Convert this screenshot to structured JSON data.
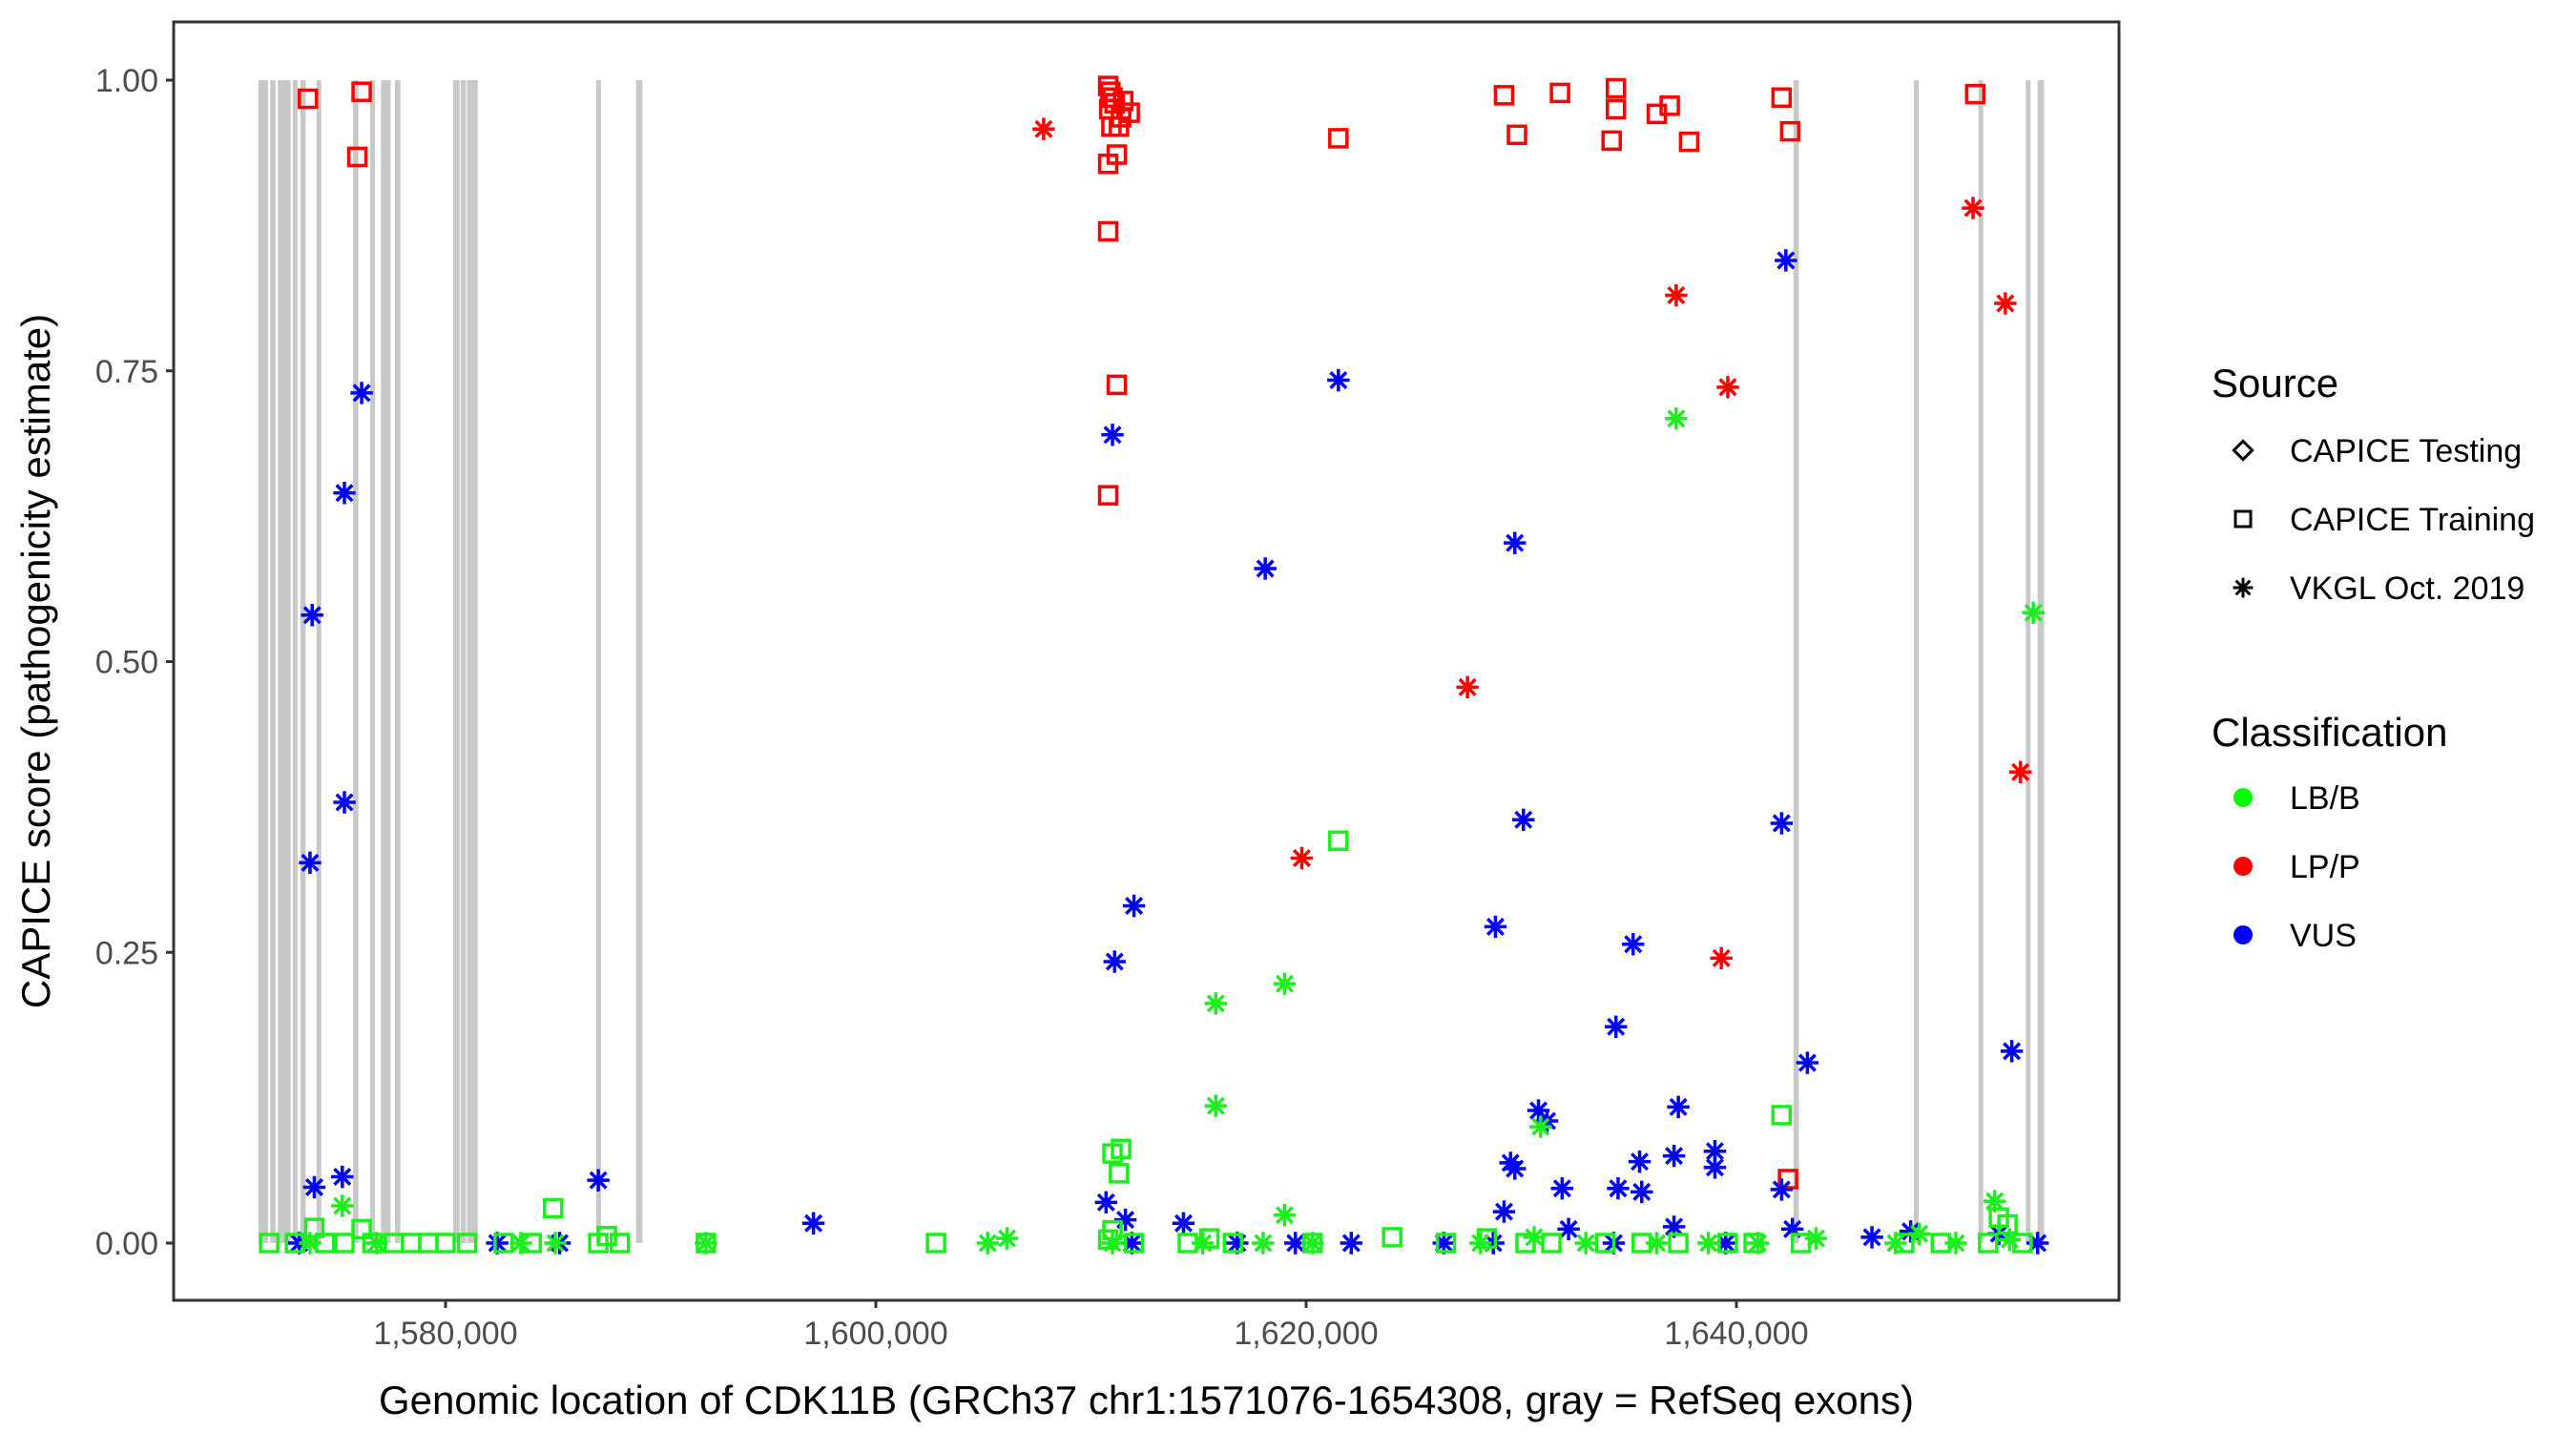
{
  "chart_data": {
    "type": "scatter",
    "title": "",
    "xlabel": "Genomic location of CDK11B (GRCh37 chr1:1571076-1654308, gray = RefSeq exons)",
    "ylabel": "CAPICE score (pathogenicity estimate)",
    "xlim": [
      1567300,
      1657900
    ],
    "ylim": [
      -0.05,
      1.05
    ],
    "x_ticks": [
      1580000,
      1600000,
      1620000,
      1640000
    ],
    "x_tick_labels": [
      "1,580,000",
      "1,600,000",
      "1,620,000",
      "1,640,000"
    ],
    "y_ticks": [
      0,
      0.25,
      0.5,
      0.75,
      1.0
    ],
    "y_tick_labels": [
      "0.00",
      "0.25",
      "0.50",
      "0.75",
      "1.00"
    ],
    "grid": false,
    "exons": [
      [
        1571300,
        1571750
      ],
      [
        1571850,
        1572100
      ],
      [
        1572200,
        1572800
      ],
      [
        1572900,
        1573100
      ],
      [
        1573250,
        1573500
      ],
      [
        1574000,
        1574150
      ],
      [
        1575700,
        1575950
      ],
      [
        1576500,
        1576650
      ],
      [
        1577000,
        1577450
      ],
      [
        1577650,
        1577900
      ],
      [
        1580350,
        1580650
      ],
      [
        1580700,
        1580950
      ],
      [
        1581000,
        1581500
      ],
      [
        1587000,
        1587200
      ],
      [
        1588850,
        1589150
      ],
      [
        1642650,
        1642900
      ],
      [
        1648250,
        1648450
      ],
      [
        1651250,
        1651450
      ],
      [
        1653450,
        1653650
      ],
      [
        1654000,
        1654300
      ]
    ],
    "legend": {
      "position": "right",
      "source_title": "Source",
      "source_entries": [
        {
          "label": "CAPICE Testing",
          "shape": "diamond"
        },
        {
          "label": "CAPICE Training",
          "shape": "square"
        },
        {
          "label": "VKGL Oct. 2019",
          "shape": "asterisk"
        }
      ],
      "class_title": "Classification",
      "class_entries": [
        {
          "label": "LB/B",
          "color": "#00ff00"
        },
        {
          "label": "LP/P",
          "color": "#ff0000"
        },
        {
          "label": "VUS",
          "color": "#0000ff"
        }
      ]
    },
    "colors": {
      "LB/B": "#1cf01c",
      "LP/P": "#ff0000",
      "VUS": "#0000ff",
      "exon": "#c8c8c8",
      "frame": "#333333"
    },
    "series": [
      {
        "name": "LP/P CAPICE Training",
        "class": "LP/P",
        "shape": "square",
        "points": [
          [
            1573600,
            0.984
          ],
          [
            1576100,
            0.99
          ],
          [
            1575900,
            0.934
          ],
          [
            1610800,
            0.995
          ],
          [
            1610900,
            0.99
          ],
          [
            1611000,
            0.985
          ],
          [
            1611100,
            0.98
          ],
          [
            1610850,
            0.975
          ],
          [
            1611500,
            0.982
          ],
          [
            1611800,
            0.972
          ],
          [
            1611400,
            0.968
          ],
          [
            1610950,
            0.96
          ],
          [
            1611300,
            0.96
          ],
          [
            1610800,
            0.928
          ],
          [
            1611200,
            0.936
          ],
          [
            1610800,
            0.87
          ],
          [
            1611200,
            0.738
          ],
          [
            1610800,
            0.643
          ],
          [
            1621500,
            0.95
          ],
          [
            1629200,
            0.987
          ],
          [
            1629800,
            0.953
          ],
          [
            1631800,
            0.989
          ],
          [
            1634400,
            0.993
          ],
          [
            1634400,
            0.975
          ],
          [
            1634200,
            0.948
          ],
          [
            1636300,
            0.971
          ],
          [
            1636900,
            0.978
          ],
          [
            1637800,
            0.947
          ],
          [
            1642100,
            0.985
          ],
          [
            1642500,
            0.956
          ],
          [
            1651100,
            0.988
          ],
          [
            1642400,
            0.055
          ]
        ]
      },
      {
        "name": "LP/P VKGL",
        "class": "LP/P",
        "shape": "asterisk",
        "points": [
          [
            1607800,
            0.958
          ],
          [
            1637200,
            0.815
          ],
          [
            1639600,
            0.736
          ],
          [
            1627500,
            0.478
          ],
          [
            1619800,
            0.331
          ],
          [
            1639300,
            0.245
          ],
          [
            1651000,
            0.89
          ],
          [
            1652500,
            0.808
          ],
          [
            1653200,
            0.405
          ]
        ]
      },
      {
        "name": "VUS VKGL",
        "class": "VUS",
        "shape": "asterisk",
        "points": [
          [
            1576100,
            0.731
          ],
          [
            1575300,
            0.645
          ],
          [
            1573800,
            0.54
          ],
          [
            1575300,
            0.379
          ],
          [
            1573700,
            0.327
          ],
          [
            1573900,
            0.048
          ],
          [
            1575200,
            0.057
          ],
          [
            1587100,
            0.054
          ],
          [
            1597100,
            0.017
          ],
          [
            1573200,
            0.0
          ],
          [
            1582400,
            0.0
          ],
          [
            1585300,
            0.0
          ],
          [
            1611000,
            0.695
          ],
          [
            1611100,
            0.242
          ],
          [
            1612000,
            0.29
          ],
          [
            1621500,
            0.742
          ],
          [
            1618100,
            0.58
          ],
          [
            1629700,
            0.602
          ],
          [
            1630100,
            0.364
          ],
          [
            1628800,
            0.272
          ],
          [
            1635200,
            0.257
          ],
          [
            1634400,
            0.186
          ],
          [
            1642300,
            0.845
          ],
          [
            1642100,
            0.361
          ],
          [
            1652800,
            0.165
          ],
          [
            1643300,
            0.155
          ],
          [
            1637300,
            0.117
          ],
          [
            1630800,
            0.114
          ],
          [
            1631200,
            0.105
          ],
          [
            1629500,
            0.069
          ],
          [
            1629700,
            0.064
          ],
          [
            1631900,
            0.047
          ],
          [
            1634500,
            0.047
          ],
          [
            1635500,
            0.07
          ],
          [
            1637100,
            0.075
          ],
          [
            1635600,
            0.044
          ],
          [
            1639000,
            0.079
          ],
          [
            1639000,
            0.065
          ],
          [
            1642100,
            0.046
          ],
          [
            1610700,
            0.035
          ],
          [
            1611600,
            0.02
          ],
          [
            1614300,
            0.017
          ],
          [
            1629200,
            0.027
          ],
          [
            1632200,
            0.012
          ],
          [
            1637100,
            0.014
          ],
          [
            1642600,
            0.012
          ],
          [
            1646300,
            0.005
          ],
          [
            1648100,
            0.01
          ],
          [
            1652200,
            0.008
          ],
          [
            1611900,
            0.0
          ],
          [
            1616800,
            0.0
          ],
          [
            1619500,
            0.0
          ],
          [
            1622100,
            0.0
          ],
          [
            1626400,
            0.0
          ],
          [
            1628700,
            0.0
          ],
          [
            1634300,
            0.0
          ],
          [
            1639500,
            0.0
          ],
          [
            1654000,
            0.0
          ]
        ]
      },
      {
        "name": "LB/B VKGL",
        "class": "LB/B",
        "shape": "asterisk",
        "points": [
          [
            1637200,
            0.709
          ],
          [
            1653800,
            0.542
          ],
          [
            1615800,
            0.206
          ],
          [
            1619000,
            0.223
          ],
          [
            1615800,
            0.118
          ],
          [
            1630900,
            0.1
          ],
          [
            1575200,
            0.032
          ],
          [
            1619000,
            0.024
          ],
          [
            1652000,
            0.036
          ],
          [
            1573700,
            0.0
          ],
          [
            1576800,
            0.0
          ],
          [
            1583500,
            0.0
          ],
          [
            1585100,
            0.0
          ],
          [
            1592100,
            0.0
          ],
          [
            1605200,
            0.0
          ],
          [
            1606100,
            0.004
          ],
          [
            1611000,
            0.0
          ],
          [
            1615200,
            0.0
          ],
          [
            1618000,
            0.0
          ],
          [
            1620300,
            0.0
          ],
          [
            1628100,
            0.0
          ],
          [
            1630600,
            0.005
          ],
          [
            1633000,
            0.0
          ],
          [
            1636300,
            0.0
          ],
          [
            1638700,
            0.0
          ],
          [
            1641000,
            0.0
          ],
          [
            1643700,
            0.004
          ],
          [
            1647400,
            0.0
          ],
          [
            1648500,
            0.008
          ],
          [
            1650200,
            0.0
          ],
          [
            1652700,
            0.003
          ]
        ]
      },
      {
        "name": "LB/B CAPICE Training",
        "class": "LB/B",
        "shape": "square",
        "points": [
          [
            1611000,
            0.077
          ],
          [
            1611400,
            0.081
          ],
          [
            1611300,
            0.06
          ],
          [
            1621500,
            0.346
          ],
          [
            1642100,
            0.11
          ],
          [
            1585000,
            0.03
          ],
          [
            1573900,
            0.013
          ],
          [
            1576100,
            0.012
          ],
          [
            1587500,
            0.006
          ],
          [
            1611000,
            0.011
          ],
          [
            1615500,
            0.004
          ],
          [
            1624000,
            0.005
          ],
          [
            1628400,
            0.004
          ],
          [
            1652200,
            0.022
          ],
          [
            1652600,
            0.016
          ],
          [
            1571800,
            0.0
          ],
          [
            1573000,
            0.0
          ],
          [
            1574400,
            0.0
          ],
          [
            1575300,
            0.0
          ],
          [
            1576600,
            0.0
          ],
          [
            1577600,
            0.0
          ],
          [
            1578400,
            0.0
          ],
          [
            1579200,
            0.0
          ],
          [
            1580000,
            0.0
          ],
          [
            1581000,
            0.0
          ],
          [
            1582700,
            0.0
          ],
          [
            1584000,
            0.0
          ],
          [
            1587100,
            0.0
          ],
          [
            1588100,
            0.0
          ],
          [
            1592100,
            0.0
          ],
          [
            1602800,
            0.0
          ],
          [
            1610800,
            0.003
          ],
          [
            1612000,
            0.0
          ],
          [
            1614500,
            0.0
          ],
          [
            1616600,
            0.0
          ],
          [
            1620300,
            0.0
          ],
          [
            1626500,
            0.0
          ],
          [
            1630200,
            0.0
          ],
          [
            1631400,
            0.0
          ],
          [
            1633900,
            0.0
          ],
          [
            1635600,
            0.0
          ],
          [
            1637300,
            0.0
          ],
          [
            1639600,
            0.0
          ],
          [
            1640800,
            0.0
          ],
          [
            1643000,
            0.0
          ],
          [
            1647800,
            0.0
          ],
          [
            1649500,
            0.0
          ],
          [
            1651700,
            0.0
          ],
          [
            1653300,
            0.0
          ]
        ]
      }
    ]
  }
}
